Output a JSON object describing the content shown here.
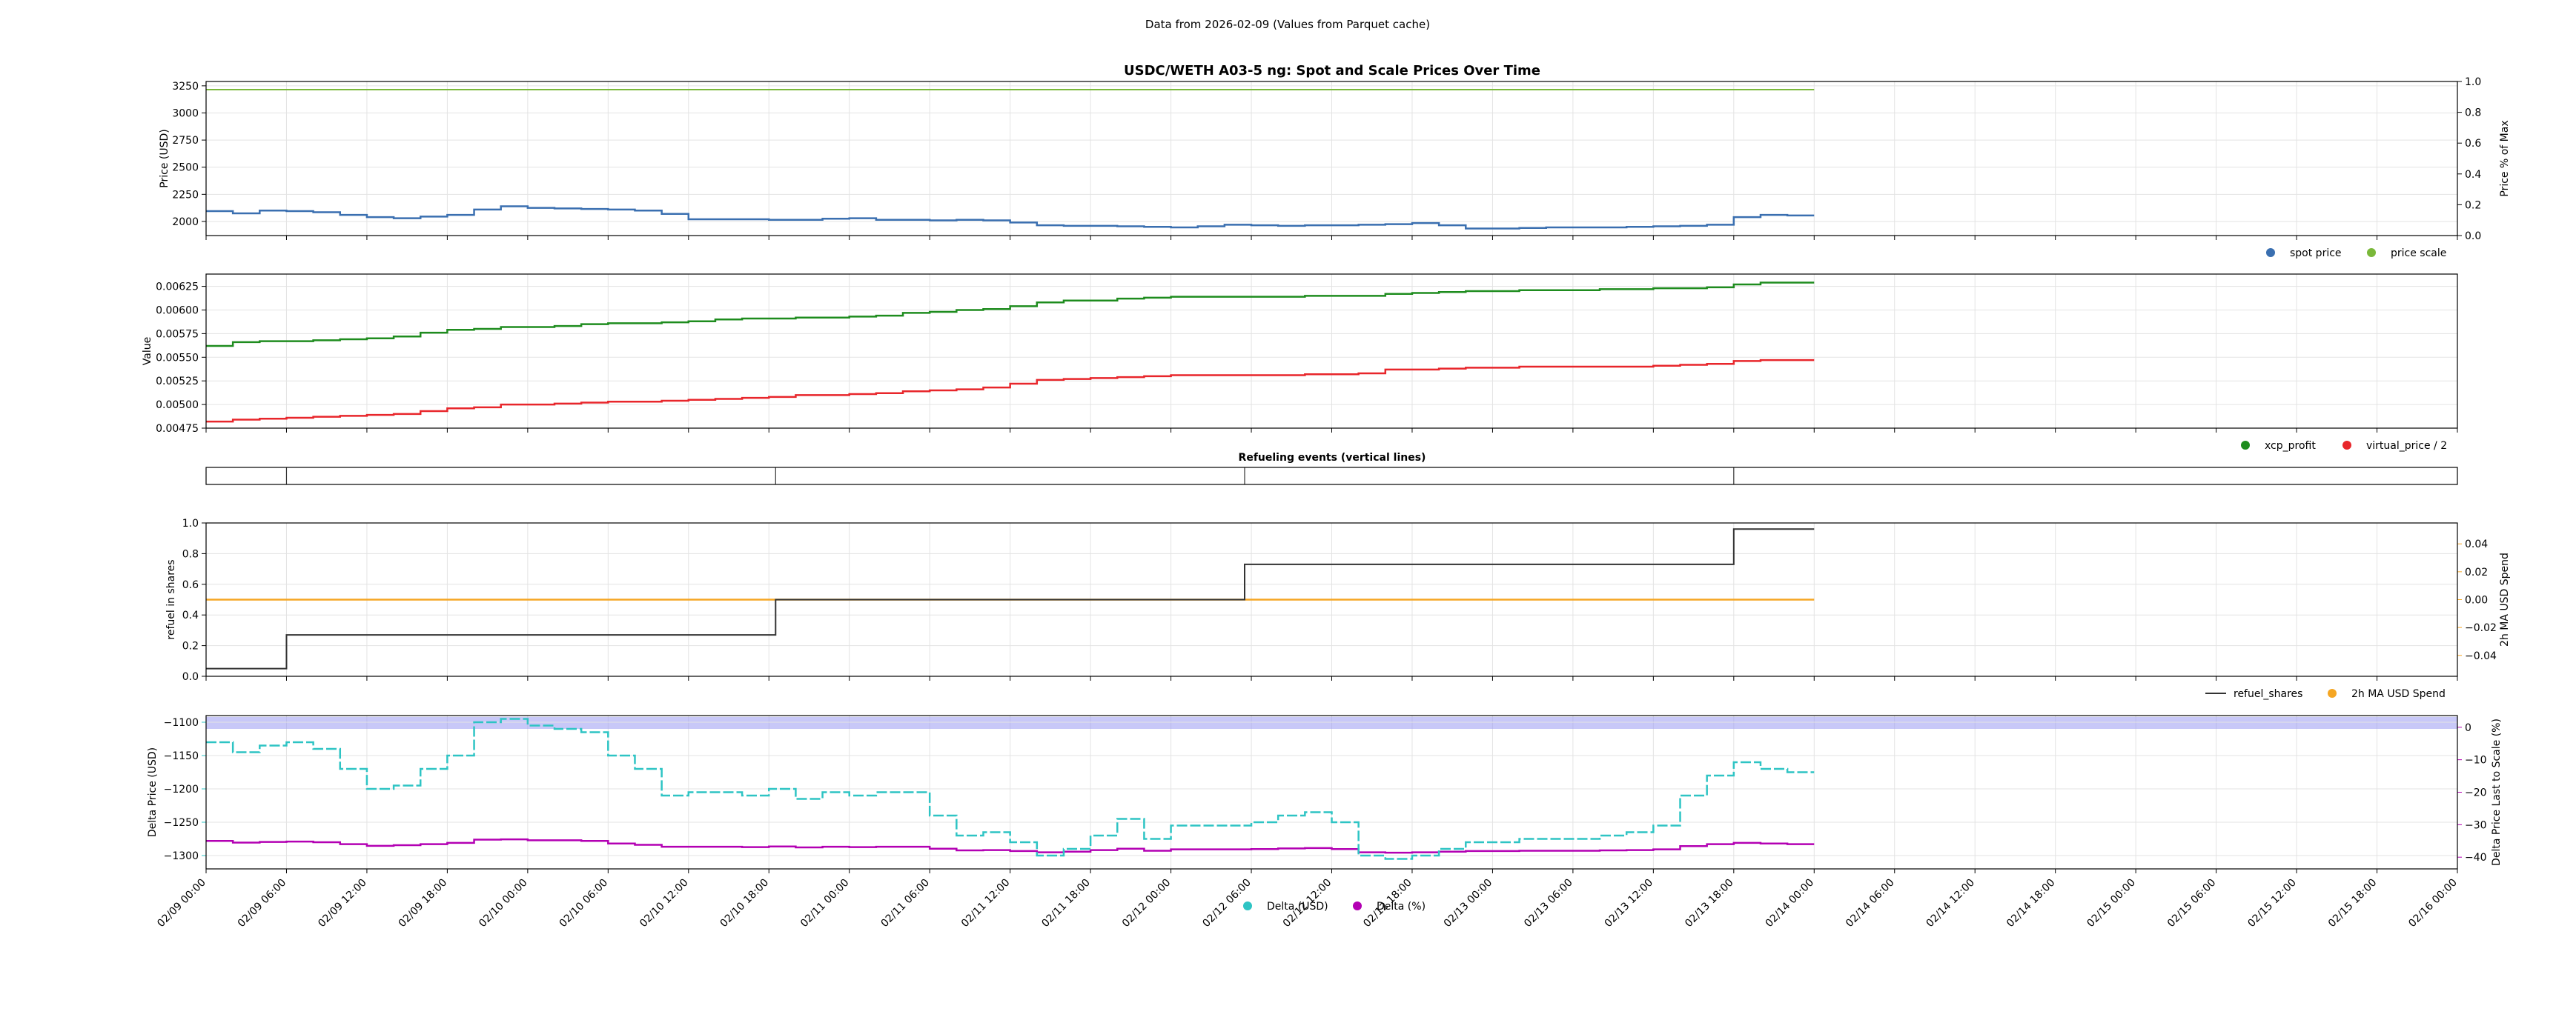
{
  "header": "Data from 2026-02-09 (Values from Parquet cache)",
  "colors": {
    "spot": "#3a6fb0",
    "scale": "#7ab83a",
    "xcp": "#1e8c1e",
    "virtual": "#e8262b",
    "refuel": "#333333",
    "ma": "#f5a623",
    "delta_usd": "#2ec4c4",
    "delta_pct": "#b300b3",
    "band": "#9a9bf2",
    "grid": "#e3e3e3"
  },
  "x_axis": {
    "ticks": [
      "02/09 00:00",
      "02/09 06:00",
      "02/09 12:00",
      "02/09 18:00",
      "02/10 00:00",
      "02/10 06:00",
      "02/10 12:00",
      "02/10 18:00",
      "02/11 00:00",
      "02/11 06:00",
      "02/11 12:00",
      "02/11 18:00",
      "02/12 00:00",
      "02/12 06:00",
      "02/12 12:00",
      "02/12 18:00",
      "02/13 00:00",
      "02/13 06:00",
      "02/13 12:00",
      "02/13 18:00",
      "02/14 00:00",
      "02/14 06:00",
      "02/14 12:00",
      "02/14 18:00",
      "02/15 00:00",
      "02/15 06:00",
      "02/15 12:00",
      "02/15 18:00",
      "02/16 00:00"
    ]
  },
  "chart_data": [
    {
      "type": "line",
      "title": "USDC/WETH A03-5 ng: Spot and Scale Prices Over Time",
      "ylabel": "Price (USD)",
      "ylabel_right": "Price % of Max",
      "ylim": [
        1870,
        3290
      ],
      "yticks": [
        "2000",
        "2250",
        "2500",
        "2750",
        "3000",
        "3250"
      ],
      "yticks_right": [
        "0.0",
        "0.2",
        "0.4",
        "0.6",
        "0.8",
        "1.0"
      ],
      "legend_position": "bottom-right",
      "x_hours": [
        0,
        2,
        4,
        6,
        8,
        10,
        12,
        14,
        16,
        18,
        20,
        22,
        24,
        26,
        28,
        30,
        32,
        34,
        36,
        38,
        40,
        42,
        44,
        46,
        48,
        50,
        52,
        54,
        56,
        58,
        60,
        62,
        64,
        66,
        68,
        70,
        72,
        74,
        76,
        78,
        80,
        82,
        84,
        86,
        88,
        90,
        92,
        94,
        96,
        98,
        100,
        102,
        104,
        106,
        108,
        110,
        112,
        114,
        116,
        118,
        120
      ],
      "series": [
        {
          "name": "spot price",
          "values": [
            2095,
            2075,
            2100,
            2095,
            2085,
            2060,
            2040,
            2030,
            2045,
            2060,
            2110,
            2140,
            2125,
            2120,
            2115,
            2110,
            2100,
            2070,
            2020,
            2020,
            2020,
            2015,
            2015,
            2025,
            2030,
            2015,
            2015,
            2010,
            2015,
            2010,
            1990,
            1965,
            1960,
            1960,
            1955,
            1950,
            1945,
            1955,
            1970,
            1965,
            1960,
            1965,
            1965,
            1970,
            1975,
            1985,
            1965,
            1935,
            1935,
            1940,
            1945,
            1945,
            1945,
            1950,
            1955,
            1960,
            1970,
            2040,
            2060,
            2055,
            2055
          ]
        },
        {
          "name": "price scale",
          "values": [
            3215,
            3215,
            3215,
            3215,
            3215,
            3215,
            3215,
            3215,
            3215,
            3215,
            3215,
            3215,
            3215,
            3215,
            3215,
            3215,
            3215,
            3215,
            3215,
            3215,
            3215,
            3215,
            3215,
            3215,
            3215,
            3215,
            3215,
            3215,
            3215,
            3215,
            3215,
            3215,
            3215,
            3215,
            3215,
            3215,
            3215,
            3215,
            3215,
            3215,
            3215,
            3215,
            3215,
            3215,
            3215,
            3215,
            3215,
            3215,
            3215,
            3215,
            3215,
            3215,
            3215,
            3215,
            3215,
            3215,
            3215,
            3215,
            3215,
            3215,
            3215
          ]
        }
      ]
    },
    {
      "type": "line",
      "ylabel": "Value",
      "ylim": [
        0.00475,
        0.00638
      ],
      "yticks": [
        "0.00475",
        "0.00500",
        "0.00525",
        "0.00550",
        "0.00575",
        "0.00600",
        "0.00625"
      ],
      "legend_position": "bottom-right",
      "x_hours": [
        0,
        2,
        4,
        6,
        8,
        10,
        12,
        14,
        16,
        18,
        20,
        22,
        24,
        26,
        28,
        30,
        32,
        34,
        36,
        38,
        40,
        42,
        44,
        46,
        48,
        50,
        52,
        54,
        56,
        58,
        60,
        62,
        64,
        66,
        68,
        70,
        72,
        74,
        76,
        78,
        80,
        82,
        84,
        86,
        88,
        90,
        92,
        94,
        96,
        98,
        100,
        102,
        104,
        106,
        108,
        110,
        112,
        114,
        116,
        118,
        120
      ],
      "series": [
        {
          "name": "xcp_profit",
          "values": [
            0.00562,
            0.00566,
            0.00567,
            0.00567,
            0.00568,
            0.00569,
            0.0057,
            0.00572,
            0.00576,
            0.00579,
            0.0058,
            0.00582,
            0.00582,
            0.00583,
            0.00585,
            0.00586,
            0.00586,
            0.00587,
            0.00588,
            0.0059,
            0.00591,
            0.00591,
            0.00592,
            0.00592,
            0.00593,
            0.00594,
            0.00597,
            0.00598,
            0.006,
            0.00601,
            0.00604,
            0.00608,
            0.0061,
            0.0061,
            0.00612,
            0.00613,
            0.00614,
            0.00614,
            0.00614,
            0.00614,
            0.00614,
            0.00615,
            0.00615,
            0.00615,
            0.00617,
            0.00618,
            0.00619,
            0.0062,
            0.0062,
            0.00621,
            0.00621,
            0.00621,
            0.00622,
            0.00622,
            0.00623,
            0.00623,
            0.00624,
            0.00627,
            0.00629,
            0.00629,
            0.00629
          ]
        },
        {
          "name": "virtual_price / 2",
          "values": [
            0.00482,
            0.00484,
            0.00485,
            0.00486,
            0.00487,
            0.00488,
            0.00489,
            0.0049,
            0.00493,
            0.00496,
            0.00497,
            0.005,
            0.005,
            0.00501,
            0.00502,
            0.00503,
            0.00503,
            0.00504,
            0.00505,
            0.00506,
            0.00507,
            0.00508,
            0.0051,
            0.0051,
            0.00511,
            0.00512,
            0.00514,
            0.00515,
            0.00516,
            0.00518,
            0.00522,
            0.00526,
            0.00527,
            0.00528,
            0.00529,
            0.0053,
            0.00531,
            0.00531,
            0.00531,
            0.00531,
            0.00531,
            0.00532,
            0.00532,
            0.00533,
            0.00537,
            0.00537,
            0.00538,
            0.00539,
            0.00539,
            0.0054,
            0.0054,
            0.0054,
            0.0054,
            0.0054,
            0.00541,
            0.00542,
            0.00543,
            0.00546,
            0.00547,
            0.00547,
            0.00547
          ]
        }
      ]
    },
    {
      "type": "line",
      "title": "Refueling events (vertical lines)",
      "events_hours": [
        6,
        42.5,
        77.5,
        114
      ]
    },
    {
      "type": "line",
      "ylabel": "refuel in shares",
      "ylabel_right": "2h MA USD Spend",
      "ylim": [
        0,
        1
      ],
      "y2lim": [
        -0.055,
        0.055
      ],
      "yticks": [
        "0.0",
        "0.2",
        "0.4",
        "0.6",
        "0.8",
        "1.0"
      ],
      "yticks_right": [
        "−0.04",
        "−0.02",
        "0.00",
        "0.02",
        "0.04"
      ],
      "legend_position": "bottom-right",
      "series": [
        {
          "name": "refuel_shares",
          "x_hours": [
            0,
            6,
            6,
            42.5,
            42.5,
            77.5,
            77.5,
            114,
            114,
            120
          ],
          "values": [
            0.05,
            0.05,
            0.27,
            0.27,
            0.5,
            0.5,
            0.73,
            0.73,
            0.96,
            0.96
          ]
        },
        {
          "name": "2h MA USD Spend",
          "x_hours": [
            0,
            120
          ],
          "values": [
            0.0,
            0.0
          ]
        }
      ]
    },
    {
      "type": "line",
      "ylabel": "Delta Price (USD)",
      "ylabel_right": "Delta Price Last to Scale (%)",
      "ylim": [
        -1320,
        -1090
      ],
      "y2lim": [
        -43.6,
        3.6
      ],
      "yticks": [
        "−1300",
        "−1250",
        "−1200",
        "−1150",
        "−1100"
      ],
      "yticks_right": [
        "−40",
        "−30",
        "−20",
        "−10",
        "0"
      ],
      "legend_position": "bottom-center",
      "band_range": [
        -1110,
        -1092
      ],
      "x_hours": [
        0,
        2,
        4,
        6,
        8,
        10,
        12,
        14,
        16,
        18,
        20,
        22,
        24,
        26,
        28,
        30,
        32,
        34,
        36,
        38,
        40,
        42,
        44,
        46,
        48,
        50,
        52,
        54,
        56,
        58,
        60,
        62,
        64,
        66,
        68,
        70,
        72,
        74,
        76,
        78,
        80,
        82,
        84,
        86,
        88,
        90,
        92,
        94,
        96,
        98,
        100,
        102,
        104,
        106,
        108,
        110,
        112,
        114,
        116,
        118,
        120
      ],
      "series": [
        {
          "name": "Delta (USD)",
          "values": [
            -1130,
            -1145,
            -1135,
            -1130,
            -1140,
            -1170,
            -1200,
            -1195,
            -1170,
            -1150,
            -1100,
            -1095,
            -1105,
            -1110,
            -1115,
            -1150,
            -1170,
            -1210,
            -1205,
            -1205,
            -1210,
            -1200,
            -1215,
            -1205,
            -1210,
            -1205,
            -1205,
            -1240,
            -1270,
            -1265,
            -1280,
            -1300,
            -1290,
            -1270,
            -1245,
            -1275,
            -1255,
            -1255,
            -1255,
            -1250,
            -1240,
            -1235,
            -1250,
            -1300,
            -1305,
            -1300,
            -1290,
            -1280,
            -1280,
            -1275,
            -1275,
            -1275,
            -1270,
            -1265,
            -1255,
            -1210,
            -1180,
            -1160,
            -1170,
            -1175,
            -1175
          ]
        },
        {
          "name": "Delta (%)",
          "values": [
            -35.0,
            -35.5,
            -35.3,
            -35.2,
            -35.4,
            -36.0,
            -36.5,
            -36.3,
            -36.0,
            -35.6,
            -34.6,
            -34.5,
            -34.8,
            -34.8,
            -35.0,
            -35.8,
            -36.2,
            -36.8,
            -36.8,
            -36.8,
            -36.9,
            -36.7,
            -37.0,
            -36.8,
            -36.9,
            -36.8,
            -36.8,
            -37.4,
            -37.9,
            -37.8,
            -38.1,
            -38.5,
            -38.3,
            -37.8,
            -37.4,
            -38.0,
            -37.6,
            -37.6,
            -37.6,
            -37.5,
            -37.3,
            -37.2,
            -37.5,
            -38.5,
            -38.6,
            -38.5,
            -38.3,
            -38.1,
            -38.1,
            -38.0,
            -38.0,
            -38.0,
            -37.9,
            -37.8,
            -37.6,
            -36.6,
            -36.0,
            -35.6,
            -35.8,
            -36.0,
            -36.0
          ]
        }
      ]
    }
  ]
}
